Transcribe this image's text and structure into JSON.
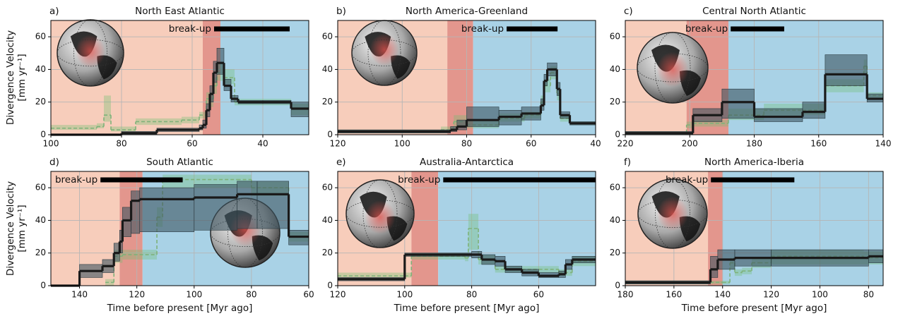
{
  "chart_data": [
    {
      "type": "step",
      "label": "a)",
      "title": "North East Atlantic",
      "ylabel": [
        "Divergence Velocity",
        "[mm yr⁻¹]"
      ],
      "xlim": [
        100,
        27
      ],
      "xticks": [
        100,
        80,
        60,
        40
      ],
      "ylim": [
        0,
        70
      ],
      "yticks": [
        0,
        20,
        40,
        60
      ],
      "grid": true,
      "regions": [
        {
          "color": "#f7cdbb",
          "x": [
            100,
            57
          ]
        },
        {
          "color": "#e3968d",
          "x": [
            57,
            52
          ]
        },
        {
          "color": "#a9d2e6",
          "x": [
            52,
            27
          ]
        }
      ],
      "breakup": {
        "label": "break-up",
        "x": [
          53.8,
          32.4
        ]
      },
      "series": [
        {
          "color": "#7fb27a",
          "style": "dashed",
          "x": [
            100,
            87,
            85,
            83,
            76,
            63,
            58,
            56,
            54,
            53,
            51,
            48,
            44,
            32
          ],
          "values": [
            4,
            5,
            12,
            3,
            8,
            9,
            12,
            22,
            30,
            38,
            35,
            20,
            20,
            16
          ],
          "lower": [
            3,
            4,
            8,
            2,
            6,
            7,
            10,
            17,
            25,
            33,
            31,
            18,
            18,
            12
          ],
          "upper": [
            6,
            7,
            24,
            5,
            10,
            11,
            14,
            26,
            35,
            44,
            40,
            22,
            22,
            19
          ]
        },
        {
          "color": "#1a1a1a",
          "style": "solid",
          "x": [
            100,
            80,
            70,
            58,
            57,
            56,
            55,
            54,
            53,
            51,
            49,
            47,
            40,
            32
          ],
          "values": [
            0,
            1,
            3,
            4,
            6,
            15,
            25,
            38,
            44,
            30,
            22,
            20,
            20,
            16
          ],
          "lower": [
            0,
            0,
            2,
            3,
            4,
            11,
            20,
            32,
            37,
            27,
            20,
            19,
            19,
            11
          ],
          "upper": [
            0,
            2,
            4,
            6,
            9,
            19,
            30,
            45,
            53,
            34,
            24,
            21,
            21,
            20
          ]
        }
      ]
    },
    {
      "type": "step",
      "label": "b)",
      "title": "North America-Greenland",
      "xlim": [
        120,
        40
      ],
      "xticks": [
        120,
        100,
        80,
        60,
        40
      ],
      "ylim": [
        0,
        70
      ],
      "yticks": [
        0,
        20,
        40,
        60
      ],
      "grid": true,
      "regions": [
        {
          "color": "#f7cdbb",
          "x": [
            120,
            86
          ]
        },
        {
          "color": "#e3968d",
          "x": [
            86,
            78
          ]
        },
        {
          "color": "#a9d2e6",
          "x": [
            78,
            40
          ]
        }
      ],
      "breakup": {
        "label": "break-up",
        "x": [
          67.6,
          51.8
        ]
      },
      "series": [
        {
          "color": "#7fb27a",
          "style": "dashed",
          "x": [
            120,
            88,
            84,
            80,
            70,
            62,
            57,
            56,
            54,
            52,
            51,
            48
          ],
          "values": [
            2,
            3,
            8,
            6,
            10,
            12,
            20,
            30,
            38,
            25,
            10,
            7
          ],
          "lower": [
            1,
            2,
            5,
            4,
            8,
            10,
            17,
            26,
            34,
            21,
            8,
            6
          ],
          "upper": [
            3,
            5,
            12,
            9,
            13,
            14,
            24,
            34,
            42,
            29,
            12,
            8
          ]
        },
        {
          "color": "#1a1a1a",
          "style": "solid",
          "x": [
            120,
            85,
            83,
            80,
            70,
            63,
            57,
            56,
            55,
            52,
            51,
            48
          ],
          "values": [
            2,
            3,
            5,
            9,
            11,
            13,
            18,
            33,
            40,
            28,
            12,
            7
          ],
          "lower": [
            1,
            2,
            3,
            5,
            6,
            9,
            15,
            30,
            36,
            24,
            10,
            6
          ],
          "upper": [
            3,
            5,
            9,
            17,
            15,
            17,
            22,
            37,
            44,
            32,
            14,
            8
          ]
        }
      ]
    },
    {
      "type": "step",
      "label": "c)",
      "title": "Central North Atlantic",
      "xlim": [
        220,
        140
      ],
      "xticks": [
        220,
        200,
        180,
        160,
        140
      ],
      "ylim": [
        0,
        70
      ],
      "yticks": [
        0,
        20,
        40,
        60
      ],
      "grid": true,
      "regions": [
        {
          "color": "#f7cdbb",
          "x": [
            220,
            201
          ]
        },
        {
          "color": "#e3968d",
          "x": [
            201,
            188
          ]
        },
        {
          "color": "#a9d2e6",
          "x": [
            188,
            140
          ]
        }
      ],
      "breakup": {
        "label": "break-up",
        "x": [
          187.3,
          170.7
        ]
      },
      "series": [
        {
          "color": "#7fb27a",
          "style": "dashed",
          "x": [
            220,
            201,
            199,
            188,
            177,
            165,
            158,
            146,
            145
          ],
          "values": [
            1,
            6,
            7,
            12,
            15,
            15,
            30,
            42,
            24
          ],
          "lower": [
            0,
            4,
            5,
            9,
            11,
            12,
            26,
            38,
            22
          ],
          "upper": [
            2,
            8,
            9,
            16,
            19,
            19,
            34,
            46,
            26
          ]
        },
        {
          "color": "#1a1a1a",
          "style": "solid",
          "x": [
            220,
            199,
            190,
            180,
            165,
            158,
            145
          ],
          "values": [
            1,
            12,
            20,
            11,
            14,
            37,
            22
          ],
          "lower": [
            0,
            8,
            10,
            8,
            10,
            30,
            20
          ],
          "upper": [
            2,
            16,
            28,
            16,
            20,
            49,
            25
          ]
        }
      ]
    },
    {
      "type": "step",
      "label": "d)",
      "title": "South Atlantic",
      "ylabel": [
        "Divergence Velocity",
        "[mm yr⁻¹]"
      ],
      "xlabel": "Time before present [Myr ago]",
      "xlim": [
        150,
        60
      ],
      "xticks": [
        140,
        120,
        100,
        80,
        60
      ],
      "ylim": [
        0,
        70
      ],
      "yticks": [
        0,
        20,
        40,
        60
      ],
      "grid": true,
      "regions": [
        {
          "color": "#f7cdbb",
          "x": [
            150,
            126
          ]
        },
        {
          "color": "#e3968d",
          "x": [
            126,
            118
          ]
        },
        {
          "color": "#a9d2e6",
          "x": [
            118,
            60
          ]
        }
      ],
      "breakup": {
        "label": "break-up",
        "x": [
          132.7,
          104
        ]
      },
      "series": [
        {
          "color": "#7fb27a",
          "style": "dashed",
          "x": [
            131,
            128,
            125,
            121,
            113,
            111,
            85,
            80,
            67
          ],
          "values": [
            2,
            18,
            19,
            19,
            42,
            65,
            65,
            60,
            30
          ],
          "lower": [
            0,
            14,
            16,
            16,
            36,
            60,
            60,
            55,
            27
          ],
          "upper": [
            4,
            22,
            22,
            22,
            48,
            68,
            68,
            64,
            33
          ]
        },
        {
          "color": "#1a1a1a",
          "style": "solid",
          "x": [
            150,
            140,
            132,
            128,
            126,
            125,
            122,
            119,
            100,
            85,
            78,
            67
          ],
          "values": [
            0,
            9,
            12,
            20,
            27,
            40,
            52,
            53,
            54,
            56,
            56,
            30
          ],
          "lower": [
            0,
            5,
            8,
            15,
            20,
            30,
            32,
            33,
            34,
            35,
            35,
            25
          ],
          "upper": [
            0,
            13,
            16,
            26,
            34,
            48,
            58,
            60,
            62,
            64,
            64,
            34
          ]
        }
      ]
    },
    {
      "type": "step",
      "label": "e)",
      "title": "Australia-Antarctica",
      "xlabel": "Time before present [Myr ago]",
      "xlim": [
        120,
        43
      ],
      "xticks": [
        120,
        100,
        80,
        60
      ],
      "ylim": [
        0,
        70
      ],
      "yticks": [
        0,
        20,
        40,
        60
      ],
      "grid": true,
      "regions": [
        {
          "color": "#f7cdbb",
          "x": [
            120,
            98
          ]
        },
        {
          "color": "#e3968d",
          "x": [
            98,
            90
          ]
        },
        {
          "color": "#a9d2e6",
          "x": [
            90,
            43
          ]
        }
      ],
      "breakup": {
        "label": "break-up",
        "x": [
          88.5,
          43
        ]
      },
      "series": [
        {
          "color": "#7fb27a",
          "style": "dashed",
          "x": [
            120,
            100,
            98,
            82,
            81,
            78,
            76,
            73,
            65,
            54,
            50
          ],
          "values": [
            6,
            6,
            18,
            17,
            35,
            16,
            16,
            10,
            10,
            8,
            15
          ],
          "lower": [
            5,
            5,
            16,
            15,
            22,
            13,
            13,
            8,
            8,
            6,
            12
          ],
          "upper": [
            8,
            8,
            20,
            19,
            44,
            19,
            19,
            12,
            12,
            10,
            18
          ]
        },
        {
          "color": "#1a1a1a",
          "style": "solid",
          "x": [
            120,
            100,
            80,
            77,
            73,
            70,
            65,
            60,
            54,
            52,
            50
          ],
          "values": [
            4,
            19,
            19,
            16,
            15,
            10,
            8,
            6,
            7,
            13,
            16
          ],
          "lower": [
            3,
            18,
            17,
            13,
            12,
            8,
            6,
            5,
            5,
            10,
            14
          ],
          "upper": [
            5,
            20,
            21,
            19,
            18,
            12,
            10,
            8,
            9,
            16,
            18
          ]
        }
      ]
    },
    {
      "type": "step",
      "label": "f)",
      "title": "North America-Iberia",
      "xlabel": "Time before present [Myr ago]",
      "xlim": [
        180,
        74
      ],
      "xticks": [
        180,
        160,
        140,
        120,
        100,
        80
      ],
      "ylim": [
        0,
        70
      ],
      "yticks": [
        0,
        20,
        40,
        60
      ],
      "grid": true,
      "regions": [
        {
          "color": "#f7cdbb",
          "x": [
            180,
            146
          ]
        },
        {
          "color": "#e3968d",
          "x": [
            146,
            140
          ]
        },
        {
          "color": "#a9d2e6",
          "x": [
            140,
            74
          ]
        }
      ],
      "breakup": {
        "label": "break-up",
        "x": [
          144.8,
          110.5
        ]
      },
      "series": [
        {
          "color": "#7fb27a",
          "style": "dashed",
          "x": [
            180,
            140,
            137,
            135,
            132,
            128,
            125,
            120,
            82
          ],
          "values": [
            2,
            2,
            14,
            8,
            9,
            14,
            14,
            18,
            17
          ],
          "lower": [
            1,
            1,
            10,
            6,
            7,
            11,
            11,
            13,
            13
          ],
          "upper": [
            3,
            3,
            17,
            10,
            11,
            17,
            17,
            22,
            21
          ]
        },
        {
          "color": "#1a1a1a",
          "style": "solid",
          "x": [
            180,
            145,
            142,
            135,
            120,
            80
          ],
          "values": [
            2,
            10,
            16,
            17,
            17,
            18
          ],
          "lower": [
            1,
            5,
            10,
            12,
            12,
            14
          ],
          "upper": [
            3,
            18,
            22,
            22,
            22,
            22
          ]
        }
      ]
    }
  ]
}
